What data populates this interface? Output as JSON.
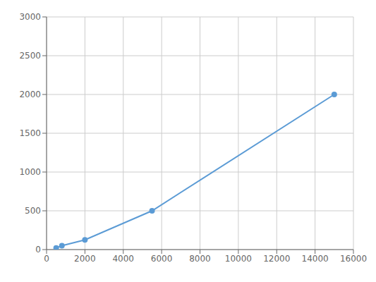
{
  "chart_data": {
    "type": "line",
    "x": [
      500,
      800,
      2000,
      5500,
      15000
    ],
    "values": [
      20,
      50,
      125,
      500,
      2000
    ],
    "color": "#5B9BD5",
    "marker": "circle",
    "xlim": [
      0,
      16000
    ],
    "ylim": [
      0,
      3000
    ],
    "xticks": [
      0,
      2000,
      4000,
      6000,
      8000,
      10000,
      12000,
      14000,
      16000
    ],
    "yticks": [
      0,
      500,
      1000,
      1500,
      2000,
      2500,
      3000
    ],
    "grid": true
  }
}
